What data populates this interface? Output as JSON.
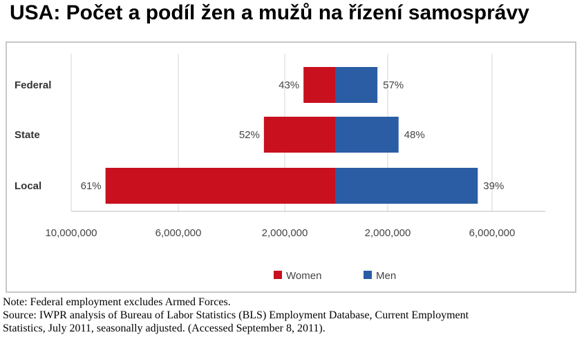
{
  "title": "USA: Počet a podíl žen a mužů na řízení samosprávy",
  "chart_data": {
    "type": "bar",
    "orientation": "horizontal-diverging",
    "categories": [
      "Federal",
      "State",
      "Local"
    ],
    "series": [
      {
        "name": "Women",
        "color": "#c8101e",
        "values": [
          1200000,
          2700000,
          8700000
        ],
        "labels": [
          "43%",
          "52%",
          "61%"
        ]
      },
      {
        "name": "Men",
        "color": "#2a5da4",
        "values": [
          1600000,
          2400000,
          5400000
        ],
        "labels": [
          "57%",
          "48%",
          "39%"
        ]
      }
    ],
    "xlim": [
      -10000000,
      6000000
    ],
    "xticks": [
      -10000000,
      -6000000,
      -2000000,
      2000000,
      6000000
    ],
    "xtick_labels": [
      "10,000,000",
      "6,000,000",
      "2,000,000",
      "2,000,000",
      "6,000,000"
    ],
    "grid": true,
    "legend": "bottom"
  },
  "notes": {
    "line1": "Note: Federal employment excludes Armed Forces.",
    "line2": "Source: IWPR analysis of Bureau of Labor Statistics (BLS) Employment Database, Current Employment",
    "line3": "Statistics, July 2011, seasonally adjusted. (Accessed September 8, 2011)."
  }
}
